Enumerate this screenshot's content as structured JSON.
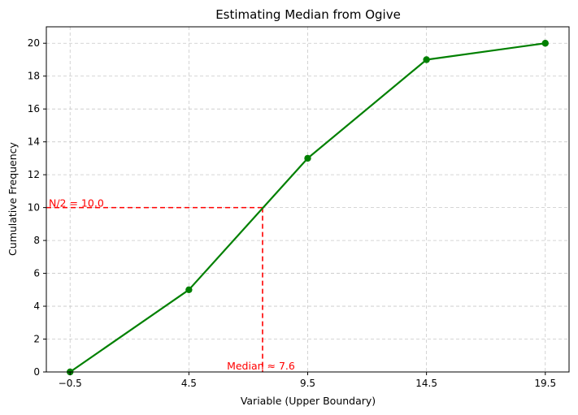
{
  "chart_data": {
    "type": "line",
    "title": "Estimating Median from Ogive",
    "xlabel": "Variable (Upper Boundary)",
    "ylabel": "Cumulative Frequency",
    "xlim": [
      -1.5,
      20.5
    ],
    "ylim": [
      0,
      21
    ],
    "xticks": [
      -0.5,
      4.5,
      9.5,
      14.5,
      19.5
    ],
    "xtick_labels": [
      "−0.5",
      "4.5",
      "9.5",
      "14.5",
      "19.5"
    ],
    "yticks": [
      0,
      2,
      4,
      6,
      8,
      10,
      12,
      14,
      16,
      18,
      20
    ],
    "ytick_labels": [
      "0",
      "2",
      "4",
      "6",
      "8",
      "10",
      "12",
      "14",
      "16",
      "18",
      "20"
    ],
    "grid": true,
    "series": [
      {
        "x": [
          -0.5,
          4.5,
          9.5,
          14.5,
          19.5
        ],
        "y": [
          0,
          5,
          13,
          19,
          20
        ],
        "color": "#008000",
        "marker": "circle"
      }
    ],
    "median_guides": {
      "n_half": 10.0,
      "median": 7.6,
      "color": "#ff0000",
      "hline_label": "N/2 = 10.0",
      "vline_label": "Median ≈ 7.6"
    }
  }
}
